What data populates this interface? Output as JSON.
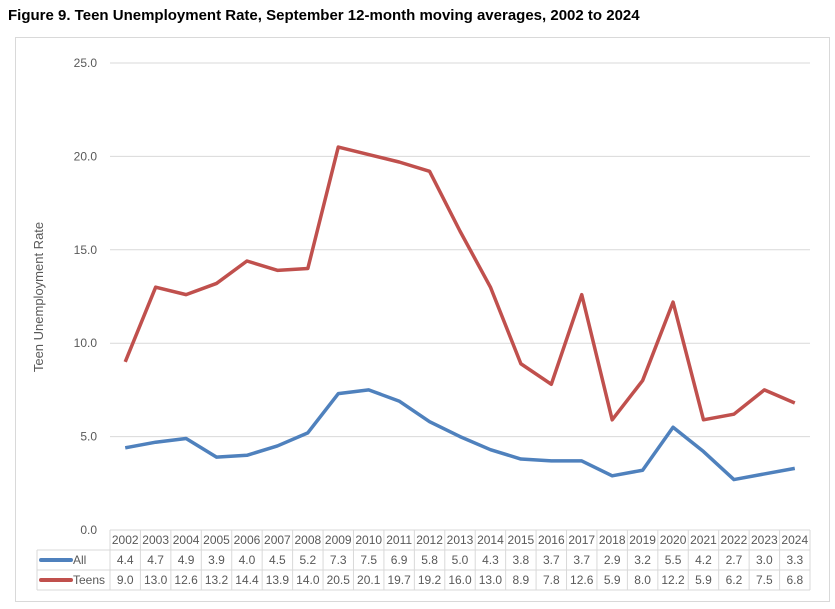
{
  "chart_data": {
    "type": "line",
    "title": "Figure 9. Teen Unemployment Rate, September 12-month moving averages, 2002 to 2024",
    "ylabel": "Teen Unemployment Rate",
    "xlabel": "",
    "ylim": [
      0,
      25
    ],
    "yticks": [
      "0.0",
      "5.0",
      "10.0",
      "15.0",
      "20.0",
      "25.0"
    ],
    "grid": true,
    "legend": "data-table",
    "categories": [
      "2002",
      "2003",
      "2004",
      "2005",
      "2006",
      "2007",
      "2008",
      "2009",
      "2010",
      "2011",
      "2012",
      "2013",
      "2014",
      "2015",
      "2016",
      "2017",
      "2018",
      "2019",
      "2020",
      "2021",
      "2022",
      "2023",
      "2024"
    ],
    "series": [
      {
        "name": "All",
        "color": "#4f81bd",
        "values": [
          4.4,
          4.7,
          4.9,
          3.9,
          4.0,
          4.5,
          5.2,
          7.3,
          7.5,
          6.9,
          5.8,
          5.0,
          4.3,
          3.8,
          3.7,
          3.7,
          2.9,
          3.2,
          5.5,
          4.2,
          2.7,
          3.0,
          3.3
        ]
      },
      {
        "name": "Teens",
        "color": "#c0504d",
        "values": [
          9.0,
          13.0,
          12.6,
          13.2,
          14.4,
          13.9,
          14.0,
          20.5,
          20.1,
          19.7,
          19.2,
          16.0,
          13.0,
          8.9,
          7.8,
          12.6,
          5.9,
          8.0,
          12.2,
          5.9,
          6.2,
          7.5,
          6.8
        ]
      }
    ]
  }
}
